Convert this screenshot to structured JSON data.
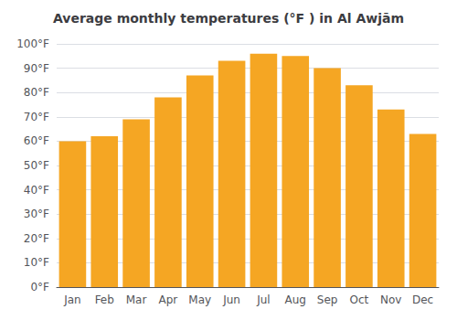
{
  "chart_data": {
    "type": "bar",
    "title": "Average monthly temperatures (°F ) in Al Awjām",
    "categories": [
      "Jan",
      "Feb",
      "Mar",
      "Apr",
      "May",
      "Jun",
      "Jul",
      "Aug",
      "Sep",
      "Oct",
      "Nov",
      "Dec"
    ],
    "values": [
      60,
      62,
      69,
      78,
      87,
      93,
      96,
      95,
      90,
      83,
      73,
      63
    ],
    "color": "#F5A623",
    "ylim": [
      0,
      100
    ],
    "yticks": [
      {
        "value": 0,
        "label": "0°F"
      },
      {
        "value": 10,
        "label": "10°F"
      },
      {
        "value": 20,
        "label": "20°F"
      },
      {
        "value": 30,
        "label": "30°F"
      },
      {
        "value": 40,
        "label": "40°F"
      },
      {
        "value": 50,
        "label": "50°F"
      },
      {
        "value": 60,
        "label": "60°F"
      },
      {
        "value": 70,
        "label": "70°F"
      },
      {
        "value": 80,
        "label": "80°F"
      },
      {
        "value": 90,
        "label": "90°F"
      },
      {
        "value": 100,
        "label": "100°F"
      }
    ],
    "grid": true
  }
}
